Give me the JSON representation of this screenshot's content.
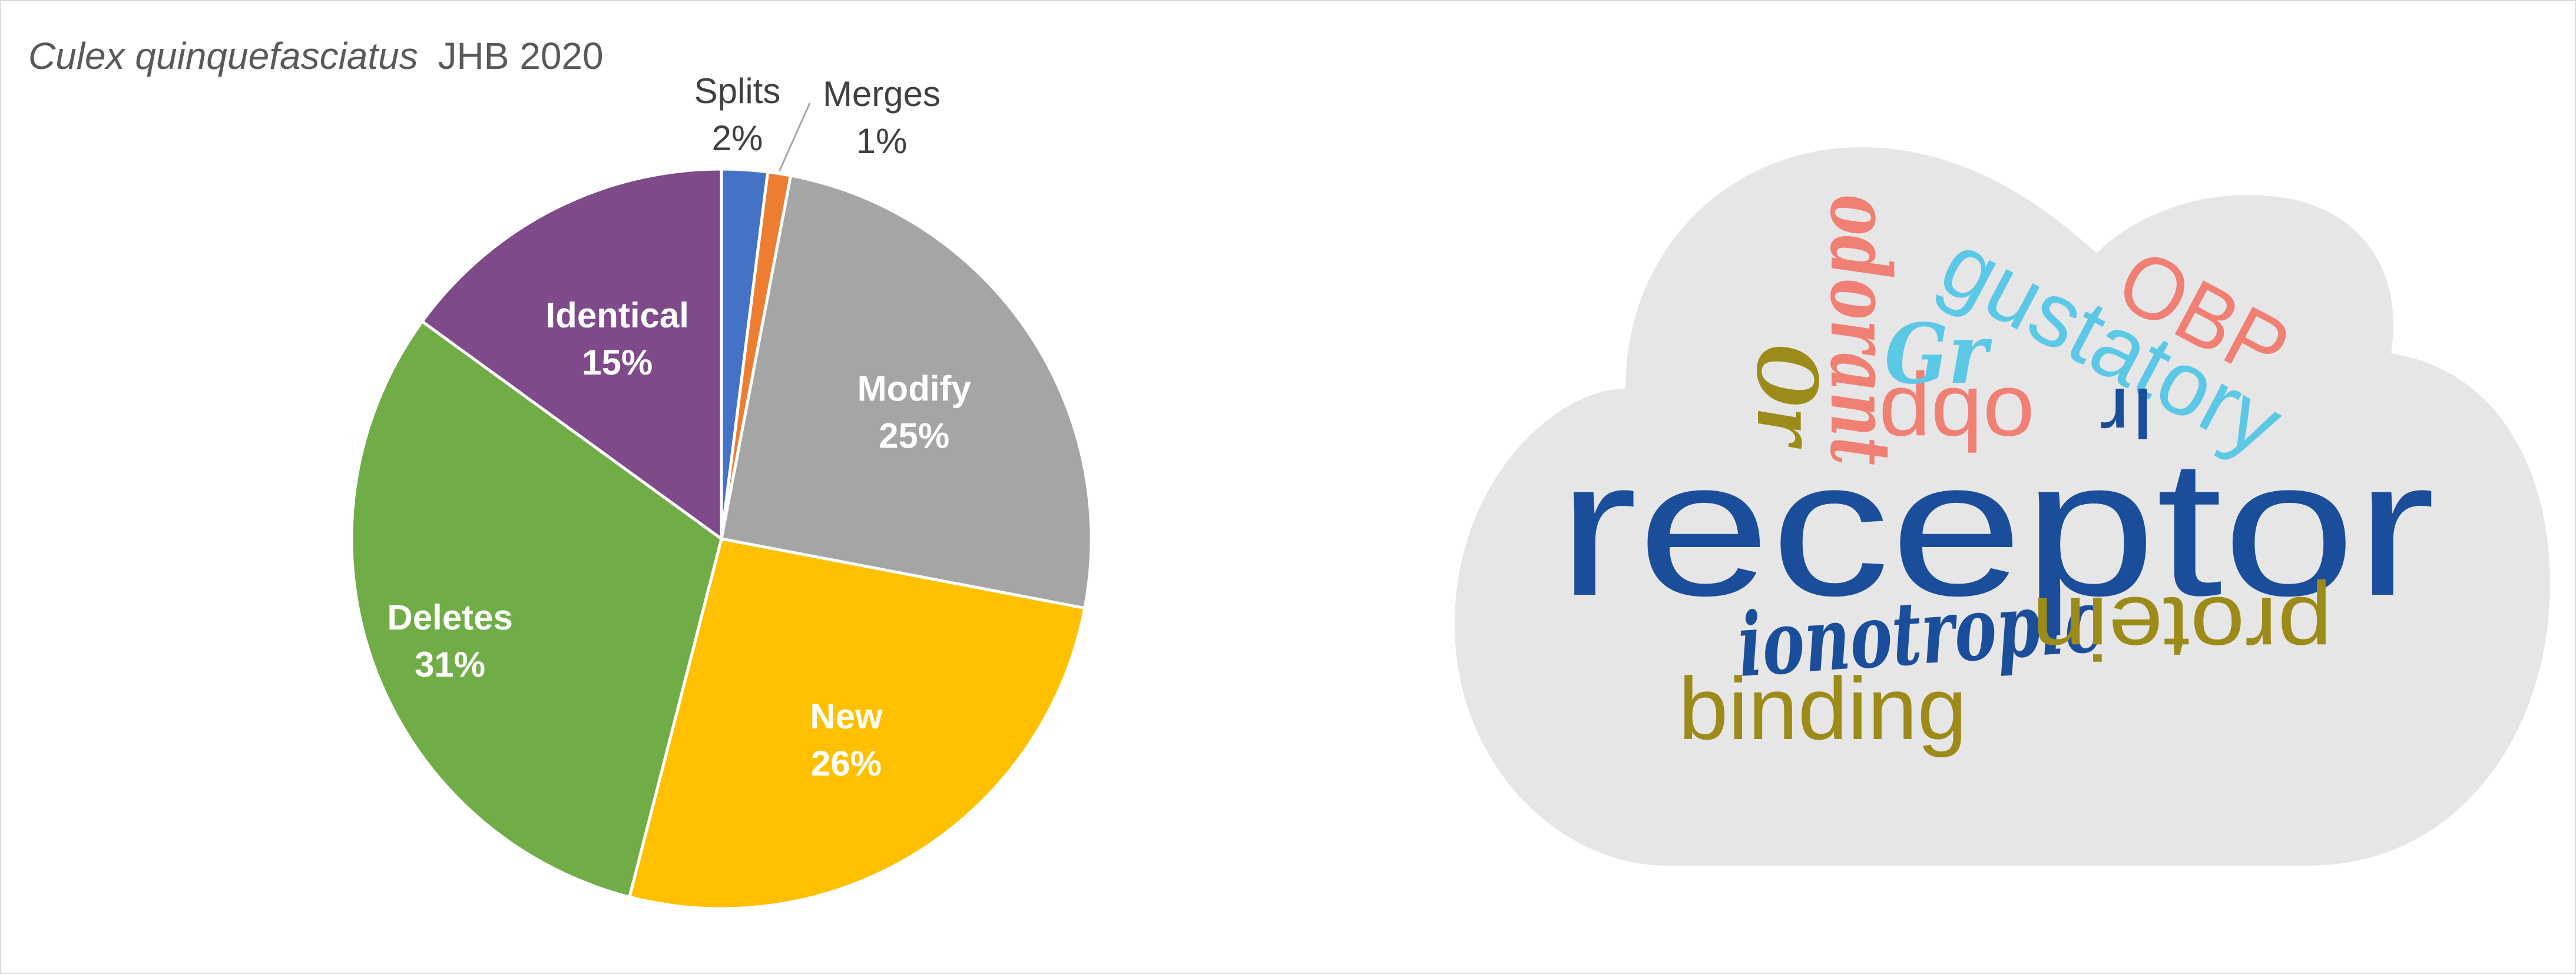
{
  "title_species": "Culex quinquefasciatus",
  "title_suffix": "JHB 2020",
  "chart_data": {
    "type": "pie",
    "slices": [
      {
        "label": "Splits",
        "value": 2,
        "display": "2%",
        "color": "#4472c4"
      },
      {
        "label": "Merges",
        "value": 1,
        "display": "1%",
        "color": "#ed7d31"
      },
      {
        "label": "Modify",
        "value": 25,
        "display": "25%",
        "color": "#a5a5a5"
      },
      {
        "label": "New",
        "value": 26,
        "display": "26%",
        "color": "#ffc000"
      },
      {
        "label": "Deletes",
        "value": 31,
        "display": "31%",
        "color": "#70ad47"
      },
      {
        "label": "Identical",
        "value": 15,
        "display": "15%",
        "color": "#7f4a8a"
      }
    ],
    "start": "12 o'clock",
    "direction": "clockwise"
  },
  "word_cloud": {
    "background_color": "#e7e6e6",
    "words": [
      {
        "text": "receptor",
        "color": "#1a4e9a"
      },
      {
        "text": "ionotropic",
        "color": "#1a4e9a"
      },
      {
        "text": "binding",
        "color": "#9c8b18"
      },
      {
        "text": "protein",
        "color": "#9c8b18"
      },
      {
        "text": "odorant",
        "color": "#f07f74"
      },
      {
        "text": "gustatory",
        "color": "#5bc8e6"
      },
      {
        "text": "OBP",
        "color": "#f07f74"
      },
      {
        "text": "obp",
        "color": "#f07f74"
      },
      {
        "text": "Gr",
        "color": "#5bc8e6"
      },
      {
        "text": "Or",
        "color": "#9c8b18"
      },
      {
        "text": "Ir",
        "color": "#1a4e9a"
      }
    ]
  }
}
